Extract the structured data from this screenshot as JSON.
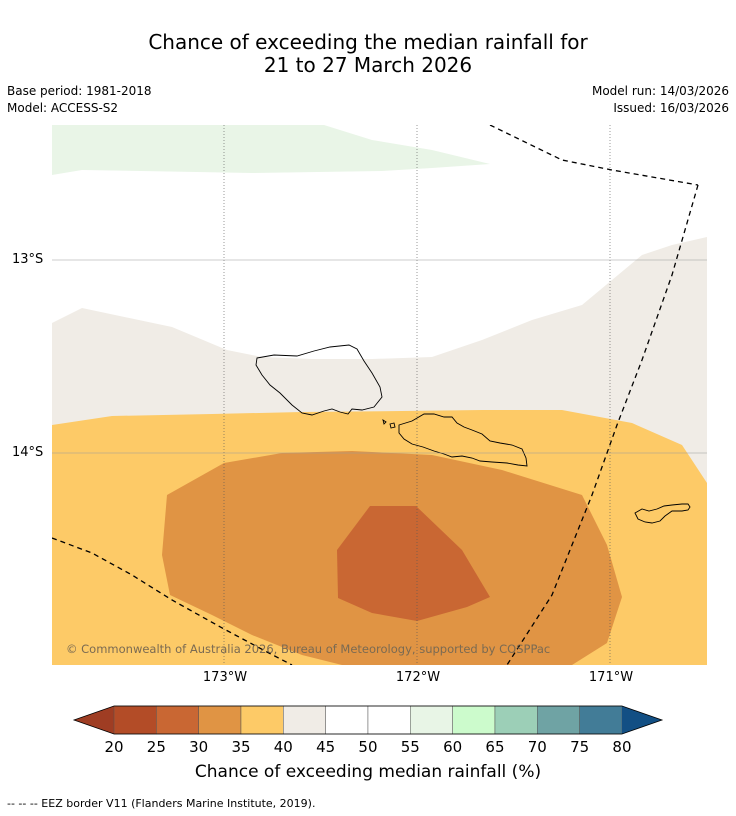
{
  "title": {
    "line1": "Chance of exceeding the median rainfall for",
    "line2": "21 to 27 March 2026"
  },
  "meta": {
    "base_period": "Base period: 1981-2018",
    "model": "Model: ACCESS-S2",
    "model_run": "Model run: 14/03/2026",
    "issued": "Issued: 16/03/2026"
  },
  "map": {
    "copyright": "© Commonwealth of Australia 2026, Bureau of Meteorology, supported by COSPPac",
    "lon_labels": [
      "173°W",
      "172°W",
      "171°W"
    ],
    "lat_labels": [
      "13°S",
      "14°S"
    ]
  },
  "colorbar": {
    "ticks": [
      "20",
      "25",
      "30",
      "35",
      "40",
      "45",
      "50",
      "55",
      "60",
      "65",
      "70",
      "75",
      "80"
    ],
    "label": "Chance of exceeding median rainfall (%)",
    "colors": [
      "#9f3d23",
      "#b34c27",
      "#c96733",
      "#e09444",
      "#fdca67",
      "#f0ece6",
      "#ffffff",
      "#ffffff",
      "#e8f5e6",
      "#ccfbcc",
      "#9ccfb7",
      "#6fa3a4",
      "#427c97",
      "#124f84"
    ]
  },
  "footer": {
    "eez_note": "-- -- -- EEZ border V11 (Flanders Marine Institute, 2019)."
  }
}
